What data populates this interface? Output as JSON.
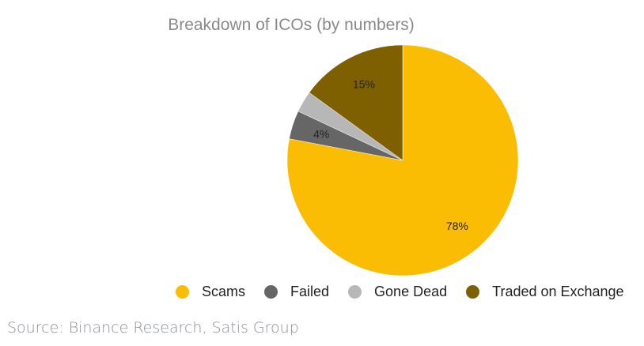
{
  "chart_data": {
    "type": "pie",
    "title": "Breakdown of ICOs (by numbers)",
    "categories": [
      "Scams",
      "Failed",
      "Gone Dead",
      "Traded on Exchange"
    ],
    "values": [
      78,
      4,
      3,
      15
    ],
    "data_labels": [
      "78%",
      "4%",
      "",
      "15%"
    ],
    "colors": [
      "#FBBC04",
      "#666666",
      "#B7B7B7",
      "#7F6000"
    ],
    "legend_position": "bottom"
  },
  "source": "Source: Binance Research, Satis Group"
}
